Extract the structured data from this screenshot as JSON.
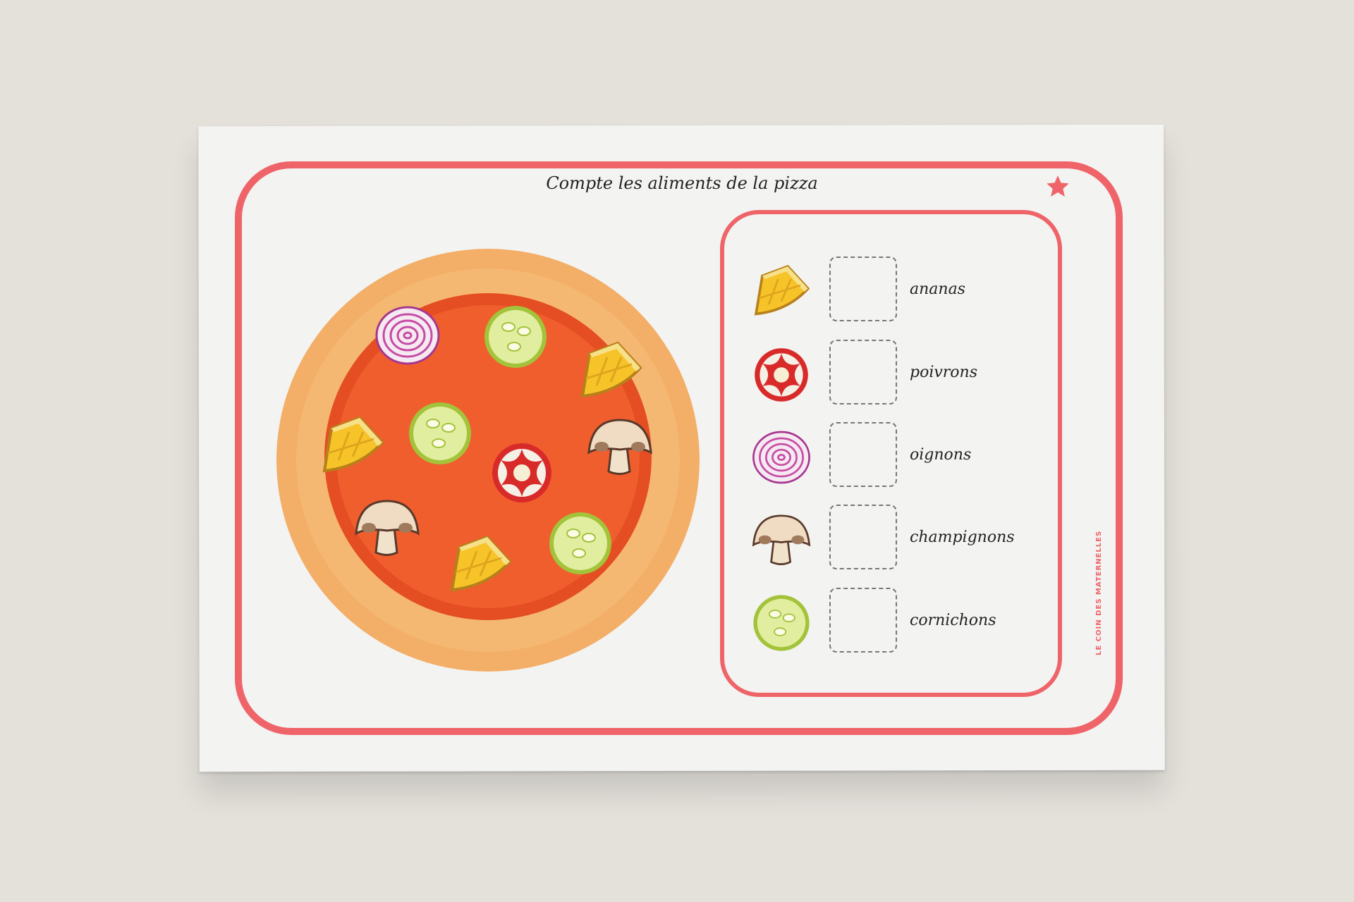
{
  "title": "Compte les aliments de la pizza",
  "brand": "LE COIN DES MATERNELLES",
  "colors": {
    "accent": "#ef6469",
    "background": "#e4e1db",
    "paper": "#f3f3f2"
  },
  "items": [
    {
      "icon": "pineapple-icon",
      "label": "ananas",
      "answer": ""
    },
    {
      "icon": "pepper-icon",
      "label": "poivrons",
      "answer": ""
    },
    {
      "icon": "onion-icon",
      "label": "oignons",
      "answer": ""
    },
    {
      "icon": "mushroom-icon",
      "label": "champignons",
      "answer": ""
    },
    {
      "icon": "cucumber-icon",
      "label": "cornichons",
      "answer": ""
    }
  ]
}
